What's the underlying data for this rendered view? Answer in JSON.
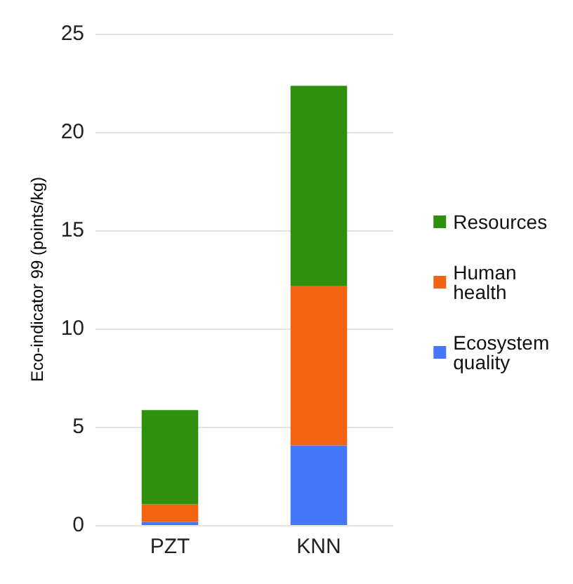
{
  "chart_data": {
    "type": "bar",
    "stacked": true,
    "ylabel": "Eco-indicator 99 (points/kg)",
    "categories": [
      "PZT",
      "KNN"
    ],
    "ylim": [
      0,
      25
    ],
    "yticks": [
      0,
      5,
      10,
      15,
      20,
      25
    ],
    "grid": "y",
    "legend": "right",
    "series": [
      {
        "name": "Ecosystem quality",
        "color": "#4477fb",
        "values": [
          0.15,
          4.05
        ]
      },
      {
        "name": "Human health",
        "color": "#f26313",
        "values": [
          0.9,
          8.1
        ]
      },
      {
        "name": "Resources",
        "color": "#2e900c",
        "values": [
          4.8,
          10.2
        ]
      }
    ]
  }
}
